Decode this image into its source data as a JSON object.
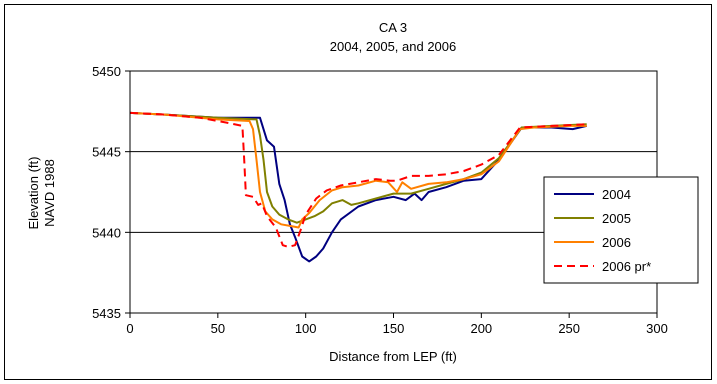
{
  "chart_data": {
    "type": "line",
    "title": "CA 3",
    "subtitle": "2004, 2005, and 2006",
    "xlabel": "Distance from LEP (ft)",
    "ylabel": "Elevation (ft)",
    "ylabel2": "NAVD 1988",
    "xlim": [
      0,
      300
    ],
    "ylim": [
      5435,
      5450
    ],
    "xticks": [
      0,
      50,
      100,
      150,
      200,
      250,
      300
    ],
    "yticks": [
      5435,
      5440,
      5445,
      5450
    ],
    "grid": "horizontal",
    "legend_position": "right",
    "series": [
      {
        "name": "2004",
        "color": "#000080",
        "dash": "",
        "points": [
          [
            0,
            5447.4
          ],
          [
            20,
            5447.3
          ],
          [
            50,
            5447.1
          ],
          [
            72,
            5447.1
          ],
          [
            74,
            5447.1
          ],
          [
            78,
            5445.7
          ],
          [
            82,
            5445.3
          ],
          [
            85,
            5443.0
          ],
          [
            88,
            5442.0
          ],
          [
            91,
            5440.5
          ],
          [
            94,
            5439.7
          ],
          [
            98,
            5438.5
          ],
          [
            102,
            5438.2
          ],
          [
            106,
            5438.5
          ],
          [
            110,
            5439.0
          ],
          [
            115,
            5440.0
          ],
          [
            120,
            5440.8
          ],
          [
            130,
            5441.6
          ],
          [
            140,
            5442.0
          ],
          [
            150,
            5442.2
          ],
          [
            157,
            5442.0
          ],
          [
            162,
            5442.4
          ],
          [
            166,
            5442.0
          ],
          [
            170,
            5442.5
          ],
          [
            180,
            5442.8
          ],
          [
            190,
            5443.2
          ],
          [
            200,
            5443.3
          ],
          [
            210,
            5444.5
          ],
          [
            223,
            5446.5
          ],
          [
            240,
            5446.5
          ],
          [
            252,
            5446.4
          ],
          [
            260,
            5446.6
          ]
        ]
      },
      {
        "name": "2005",
        "color": "#808000",
        "dash": "",
        "points": [
          [
            0,
            5447.4
          ],
          [
            20,
            5447.3
          ],
          [
            50,
            5447.1
          ],
          [
            72,
            5447.0
          ],
          [
            74,
            5446.0
          ],
          [
            76,
            5444.5
          ],
          [
            78,
            5442.5
          ],
          [
            81,
            5441.6
          ],
          [
            85,
            5441.1
          ],
          [
            90,
            5440.8
          ],
          [
            95,
            5440.6
          ],
          [
            100,
            5440.8
          ],
          [
            105,
            5441.0
          ],
          [
            110,
            5441.3
          ],
          [
            115,
            5441.8
          ],
          [
            121,
            5442.0
          ],
          [
            126,
            5441.7
          ],
          [
            130,
            5441.8
          ],
          [
            140,
            5442.1
          ],
          [
            150,
            5442.4
          ],
          [
            160,
            5442.4
          ],
          [
            170,
            5442.7
          ],
          [
            180,
            5443.0
          ],
          [
            190,
            5443.3
          ],
          [
            200,
            5443.7
          ],
          [
            210,
            5444.6
          ],
          [
            223,
            5446.5
          ],
          [
            240,
            5446.6
          ],
          [
            260,
            5446.7
          ]
        ]
      },
      {
        "name": "2006",
        "color": "#ff8000",
        "dash": "",
        "points": [
          [
            0,
            5447.4
          ],
          [
            20,
            5447.3
          ],
          [
            50,
            5447.0
          ],
          [
            68,
            5446.9
          ],
          [
            70,
            5446.4
          ],
          [
            72,
            5444.5
          ],
          [
            74,
            5442.5
          ],
          [
            77,
            5441.3
          ],
          [
            81,
            5440.8
          ],
          [
            86,
            5440.5
          ],
          [
            91,
            5440.4
          ],
          [
            96,
            5440.3
          ],
          [
            98,
            5440.8
          ],
          [
            102,
            5441.2
          ],
          [
            108,
            5442.0
          ],
          [
            115,
            5442.6
          ],
          [
            121,
            5442.8
          ],
          [
            130,
            5442.9
          ],
          [
            140,
            5443.2
          ],
          [
            147,
            5443.1
          ],
          [
            152,
            5442.5
          ],
          [
            155,
            5443.1
          ],
          [
            160,
            5442.7
          ],
          [
            170,
            5443.0
          ],
          [
            180,
            5443.1
          ],
          [
            190,
            5443.3
          ],
          [
            200,
            5443.6
          ],
          [
            210,
            5444.4
          ],
          [
            222,
            5446.4
          ],
          [
            230,
            5446.5
          ],
          [
            250,
            5446.6
          ],
          [
            260,
            5446.6
          ]
        ]
      },
      {
        "name": "2006 pr*",
        "color": "#ff0000",
        "dash": "8,5",
        "points": [
          [
            0,
            5447.4
          ],
          [
            20,
            5447.3
          ],
          [
            40,
            5447.1
          ],
          [
            55,
            5446.8
          ],
          [
            64,
            5446.6
          ],
          [
            65,
            5444.5
          ],
          [
            66,
            5442.3
          ],
          [
            70,
            5442.2
          ],
          [
            73,
            5441.7
          ],
          [
            75,
            5441.8
          ],
          [
            78,
            5441.0
          ],
          [
            83,
            5440.3
          ],
          [
            87,
            5439.2
          ],
          [
            90,
            5439.1
          ],
          [
            94,
            5439.2
          ],
          [
            97,
            5440.1
          ],
          [
            100,
            5441.1
          ],
          [
            106,
            5442.1
          ],
          [
            112,
            5442.6
          ],
          [
            120,
            5442.9
          ],
          [
            130,
            5443.1
          ],
          [
            140,
            5443.3
          ],
          [
            148,
            5443.2
          ],
          [
            152,
            5443.2
          ],
          [
            160,
            5443.5
          ],
          [
            170,
            5443.5
          ],
          [
            180,
            5443.6
          ],
          [
            190,
            5443.8
          ],
          [
            200,
            5444.2
          ],
          [
            210,
            5444.8
          ],
          [
            222,
            5446.5
          ],
          [
            240,
            5446.6
          ],
          [
            260,
            5446.7
          ]
        ]
      }
    ]
  }
}
